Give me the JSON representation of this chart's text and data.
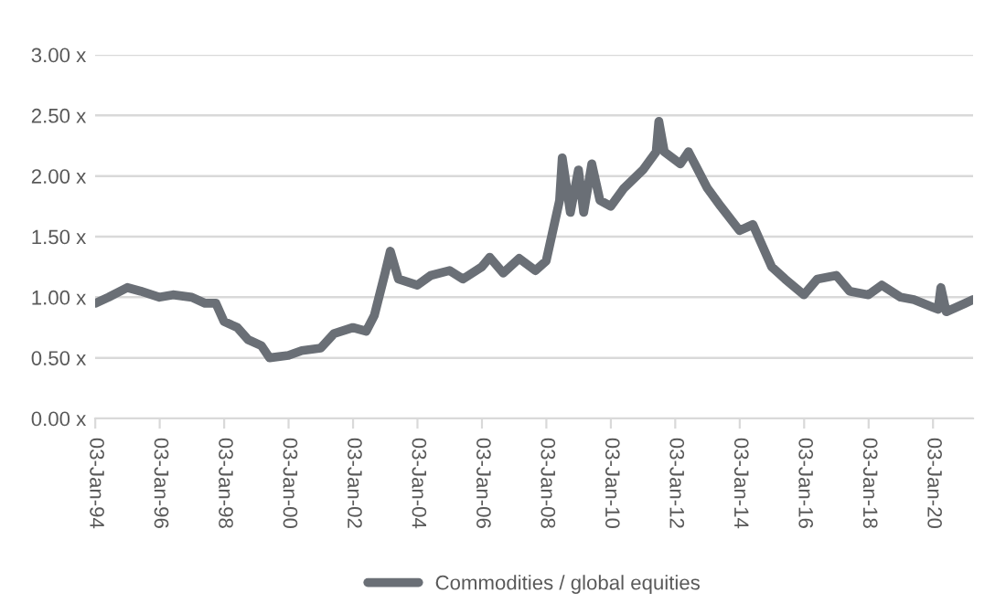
{
  "chart_data": {
    "type": "line",
    "grid": "y",
    "legend": "bottom",
    "line_style": "solid",
    "marker": "none",
    "x": [
      "1994-01",
      "1994-06",
      "1995-01",
      "1995-06",
      "1996-01",
      "1996-06",
      "1997-01",
      "1997-06",
      "1997-10",
      "1998-01",
      "1998-06",
      "1998-10",
      "1999-03",
      "1999-06",
      "2000-01",
      "2000-06",
      "2001-01",
      "2001-06",
      "2002-01",
      "2002-06",
      "2002-09",
      "2003-01",
      "2003-03",
      "2003-06",
      "2004-01",
      "2004-06",
      "2005-01",
      "2005-06",
      "2006-01",
      "2006-04",
      "2006-09",
      "2007-03",
      "2007-09",
      "2008-01",
      "2008-06",
      "2008-07",
      "2008-10",
      "2009-01",
      "2009-03",
      "2009-06",
      "2009-09",
      "2010-01",
      "2010-06",
      "2011-01",
      "2011-06",
      "2011-07",
      "2011-09",
      "2012-03",
      "2012-06",
      "2013-01",
      "2013-06",
      "2014-01",
      "2014-06",
      "2015-01",
      "2015-06",
      "2016-01",
      "2016-06",
      "2017-01",
      "2017-06",
      "2018-01",
      "2018-06",
      "2019-01",
      "2019-06",
      "2020-03",
      "2020-04",
      "2020-06",
      "2021-01",
      "2021-04"
    ],
    "series": [
      {
        "name": "Commodities / global equities",
        "color": "#6a6f76",
        "values": [
          0.95,
          1.0,
          1.08,
          1.05,
          1.0,
          1.02,
          1.0,
          0.95,
          0.95,
          0.8,
          0.75,
          0.65,
          0.6,
          0.5,
          0.52,
          0.56,
          0.58,
          0.7,
          0.75,
          0.72,
          0.85,
          1.2,
          1.38,
          1.15,
          1.1,
          1.18,
          1.22,
          1.15,
          1.25,
          1.33,
          1.2,
          1.32,
          1.22,
          1.3,
          1.8,
          2.15,
          1.7,
          2.05,
          1.7,
          2.1,
          1.8,
          1.75,
          1.9,
          2.05,
          2.2,
          2.45,
          2.2,
          2.1,
          2.2,
          1.9,
          1.75,
          1.55,
          1.6,
          1.25,
          1.15,
          1.02,
          1.15,
          1.18,
          1.05,
          1.02,
          1.1,
          1.0,
          0.98,
          0.9,
          1.08,
          0.88,
          0.95,
          0.98
        ]
      }
    ],
    "xlim": [
      "1994-01",
      "2021-04"
    ],
    "xticks": [
      {
        "value": "1994-01-03",
        "label": "03-Jan-94"
      },
      {
        "value": "1996-01-03",
        "label": "03-Jan-96"
      },
      {
        "value": "1998-01-03",
        "label": "03-Jan-98"
      },
      {
        "value": "2000-01-03",
        "label": "03-Jan-00"
      },
      {
        "value": "2002-01-03",
        "label": "03-Jan-02"
      },
      {
        "value": "2004-01-03",
        "label": "03-Jan-04"
      },
      {
        "value": "2006-01-03",
        "label": "03-Jan-06"
      },
      {
        "value": "2008-01-03",
        "label": "03-Jan-08"
      },
      {
        "value": "2010-01-03",
        "label": "03-Jan-10"
      },
      {
        "value": "2012-01-03",
        "label": "03-Jan-12"
      },
      {
        "value": "2014-01-03",
        "label": "03-Jan-14"
      },
      {
        "value": "2016-01-03",
        "label": "03-Jan-16"
      },
      {
        "value": "2018-01-03",
        "label": "03-Jan-18"
      },
      {
        "value": "2020-01-03",
        "label": "03-Jan-20"
      }
    ],
    "ylim": [
      0,
      3
    ],
    "yticks": [
      {
        "value": 0,
        "label": "0.00 x"
      },
      {
        "value": 0.5,
        "label": "0.50 x"
      },
      {
        "value": 1,
        "label": "1.00 x"
      },
      {
        "value": 1.5,
        "label": "1.50 x"
      },
      {
        "value": 2,
        "label": "2.00 x"
      },
      {
        "value": 2.5,
        "label": "2.50 x"
      },
      {
        "value": 3,
        "label": "3.00 x"
      }
    ]
  }
}
